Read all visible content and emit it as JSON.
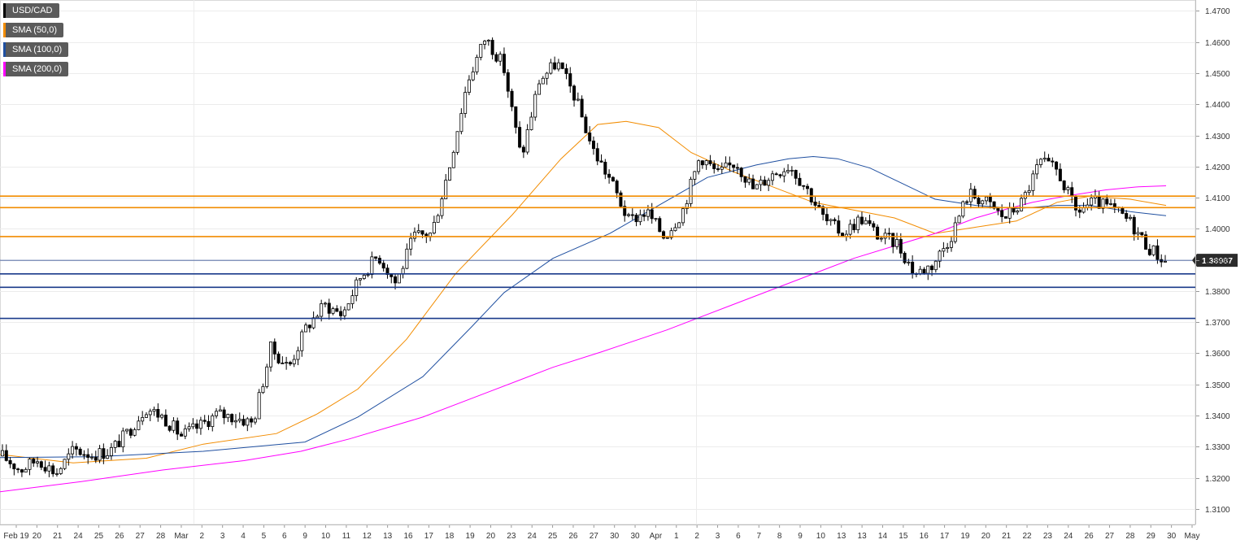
{
  "legend": [
    {
      "label": "USD/CAD",
      "color": "#000000"
    },
    {
      "label": "SMA (50,0)",
      "color": "#f28c00"
    },
    {
      "label": "SMA (100,0)",
      "color": "#1f4fa0"
    },
    {
      "label": "SMA (200,0)",
      "color": "#ff00ff"
    }
  ],
  "chart_data": {
    "type": "line",
    "title": "",
    "xlabel": "",
    "ylabel": "",
    "ylim": [
      1.305,
      1.4735
    ],
    "y_ticks": [
      "1.4700",
      "1.4600",
      "1.4500",
      "1.4400",
      "1.4300",
      "1.4200",
      "1.4100",
      "1.4000",
      "1.3900",
      "1.3800",
      "1.3700",
      "1.3600",
      "1.3500",
      "1.3400",
      "1.3300",
      "1.3200",
      "1.3100"
    ],
    "x_ticks": [
      "Feb 19",
      "20",
      "21",
      "24",
      "25",
      "26",
      "27",
      "28",
      "Mar",
      "2",
      "3",
      "4",
      "5",
      "6",
      "9",
      "10",
      "11",
      "12",
      "13",
      "16",
      "17",
      "18",
      "19",
      "20",
      "23",
      "24",
      "25",
      "26",
      "27",
      "30",
      "30",
      "Apr",
      "1",
      "2",
      "3",
      "6",
      "7",
      "8",
      "9",
      "10",
      "13",
      "13",
      "14",
      "15",
      "16",
      "17",
      "19",
      "20",
      "21",
      "22",
      "23",
      "24",
      "26",
      "27",
      "28",
      "29",
      "30",
      "May"
    ],
    "last_price": "1.38987",
    "grid": true,
    "legend_position": "top-left",
    "price_series": {
      "name": "USD/CAD",
      "color": "#000000",
      "anchors": [
        1.327,
        1.3225,
        1.326,
        1.3215,
        1.329,
        1.3275,
        1.3285,
        1.3345,
        1.3425,
        1.3395,
        1.3335,
        1.3365,
        1.3405,
        1.3395,
        1.3375,
        1.3615,
        1.3555,
        1.3685,
        1.3755,
        1.3725,
        1.3845,
        1.3915,
        1.3825,
        1.3975,
        1.3985,
        1.4205,
        1.4475,
        1.4615,
        1.4525,
        1.4225,
        1.4475,
        1.4535,
        1.4425,
        1.4255,
        1.4155,
        1.4025,
        1.4055,
        1.3975,
        1.4055,
        1.4235,
        1.4175,
        1.4215,
        1.4125,
        1.4175,
        1.4205,
        1.4125,
        1.4025,
        1.3985,
        1.4035,
        1.3975,
        1.3955,
        1.3855,
        1.3885,
        1.3975,
        1.4115,
        1.4085,
        1.4035,
        1.4085,
        1.4215,
        1.4185,
        1.4055,
        1.4085,
        1.4065,
        1.4025,
        1.3945,
        1.3895
      ]
    },
    "sma_series": [
      {
        "name": "SMA (50,0)",
        "color": "#f28c00",
        "points": [
          [
            0,
            1.3275
          ],
          [
            90,
            1.3248
          ],
          [
            180,
            1.3263
          ],
          [
            250,
            1.3308
          ],
          [
            340,
            1.3342
          ],
          [
            390,
            1.3405
          ],
          [
            440,
            1.3485
          ],
          [
            500,
            1.3645
          ],
          [
            560,
            1.3855
          ],
          [
            630,
            1.4045
          ],
          [
            690,
            1.4225
          ],
          [
            735,
            1.4335
          ],
          [
            770,
            1.4345
          ],
          [
            810,
            1.4325
          ],
          [
            850,
            1.4245
          ],
          [
            900,
            1.4185
          ],
          [
            950,
            1.4135
          ],
          [
            1000,
            1.4085
          ],
          [
            1060,
            1.4055
          ],
          [
            1100,
            1.4035
          ],
          [
            1150,
            1.3985
          ],
          [
            1200,
            1.4005
          ],
          [
            1250,
            1.4025
          ],
          [
            1300,
            1.4085
          ],
          [
            1340,
            1.4105
          ],
          [
            1390,
            1.4095
          ],
          [
            1434,
            1.4075
          ]
        ]
      },
      {
        "name": "SMA (100,0)",
        "color": "#1f4fa0",
        "points": [
          [
            0,
            1.3265
          ],
          [
            120,
            1.3268
          ],
          [
            250,
            1.3285
          ],
          [
            375,
            1.3315
          ],
          [
            440,
            1.3395
          ],
          [
            520,
            1.3525
          ],
          [
            580,
            1.3685
          ],
          [
            620,
            1.3795
          ],
          [
            680,
            1.3905
          ],
          [
            750,
            1.3985
          ],
          [
            810,
            1.4075
          ],
          [
            870,
            1.4165
          ],
          [
            930,
            1.4205
          ],
          [
            970,
            1.4225
          ],
          [
            1000,
            1.4232
          ],
          [
            1030,
            1.4225
          ],
          [
            1070,
            1.4195
          ],
          [
            1110,
            1.4145
          ],
          [
            1150,
            1.4095
          ],
          [
            1200,
            1.4075
          ],
          [
            1250,
            1.4065
          ],
          [
            1300,
            1.4075
          ],
          [
            1340,
            1.4075
          ],
          [
            1390,
            1.4055
          ],
          [
            1434,
            1.4042
          ]
        ]
      },
      {
        "name": "SMA (200,0)",
        "color": "#ff00ff",
        "points": [
          [
            0,
            1.3155
          ],
          [
            100,
            1.3188
          ],
          [
            200,
            1.3225
          ],
          [
            300,
            1.3255
          ],
          [
            370,
            1.3285
          ],
          [
            430,
            1.3325
          ],
          [
            520,
            1.3395
          ],
          [
            600,
            1.3475
          ],
          [
            680,
            1.3555
          ],
          [
            740,
            1.3605
          ],
          [
            820,
            1.3675
          ],
          [
            900,
            1.3755
          ],
          [
            980,
            1.3835
          ],
          [
            1050,
            1.3905
          ],
          [
            1100,
            1.3945
          ],
          [
            1150,
            1.3985
          ],
          [
            1200,
            1.4035
          ],
          [
            1240,
            1.4065
          ],
          [
            1270,
            1.4085
          ],
          [
            1310,
            1.4105
          ],
          [
            1360,
            1.4125
          ],
          [
            1400,
            1.4135
          ],
          [
            1434,
            1.4138
          ]
        ]
      }
    ],
    "resistance_levels": [
      1.4105,
      1.4068,
      1.3975
    ],
    "support_levels": [
      1.3855,
      1.3812,
      1.3712
    ],
    "current_line": 1.38987
  }
}
